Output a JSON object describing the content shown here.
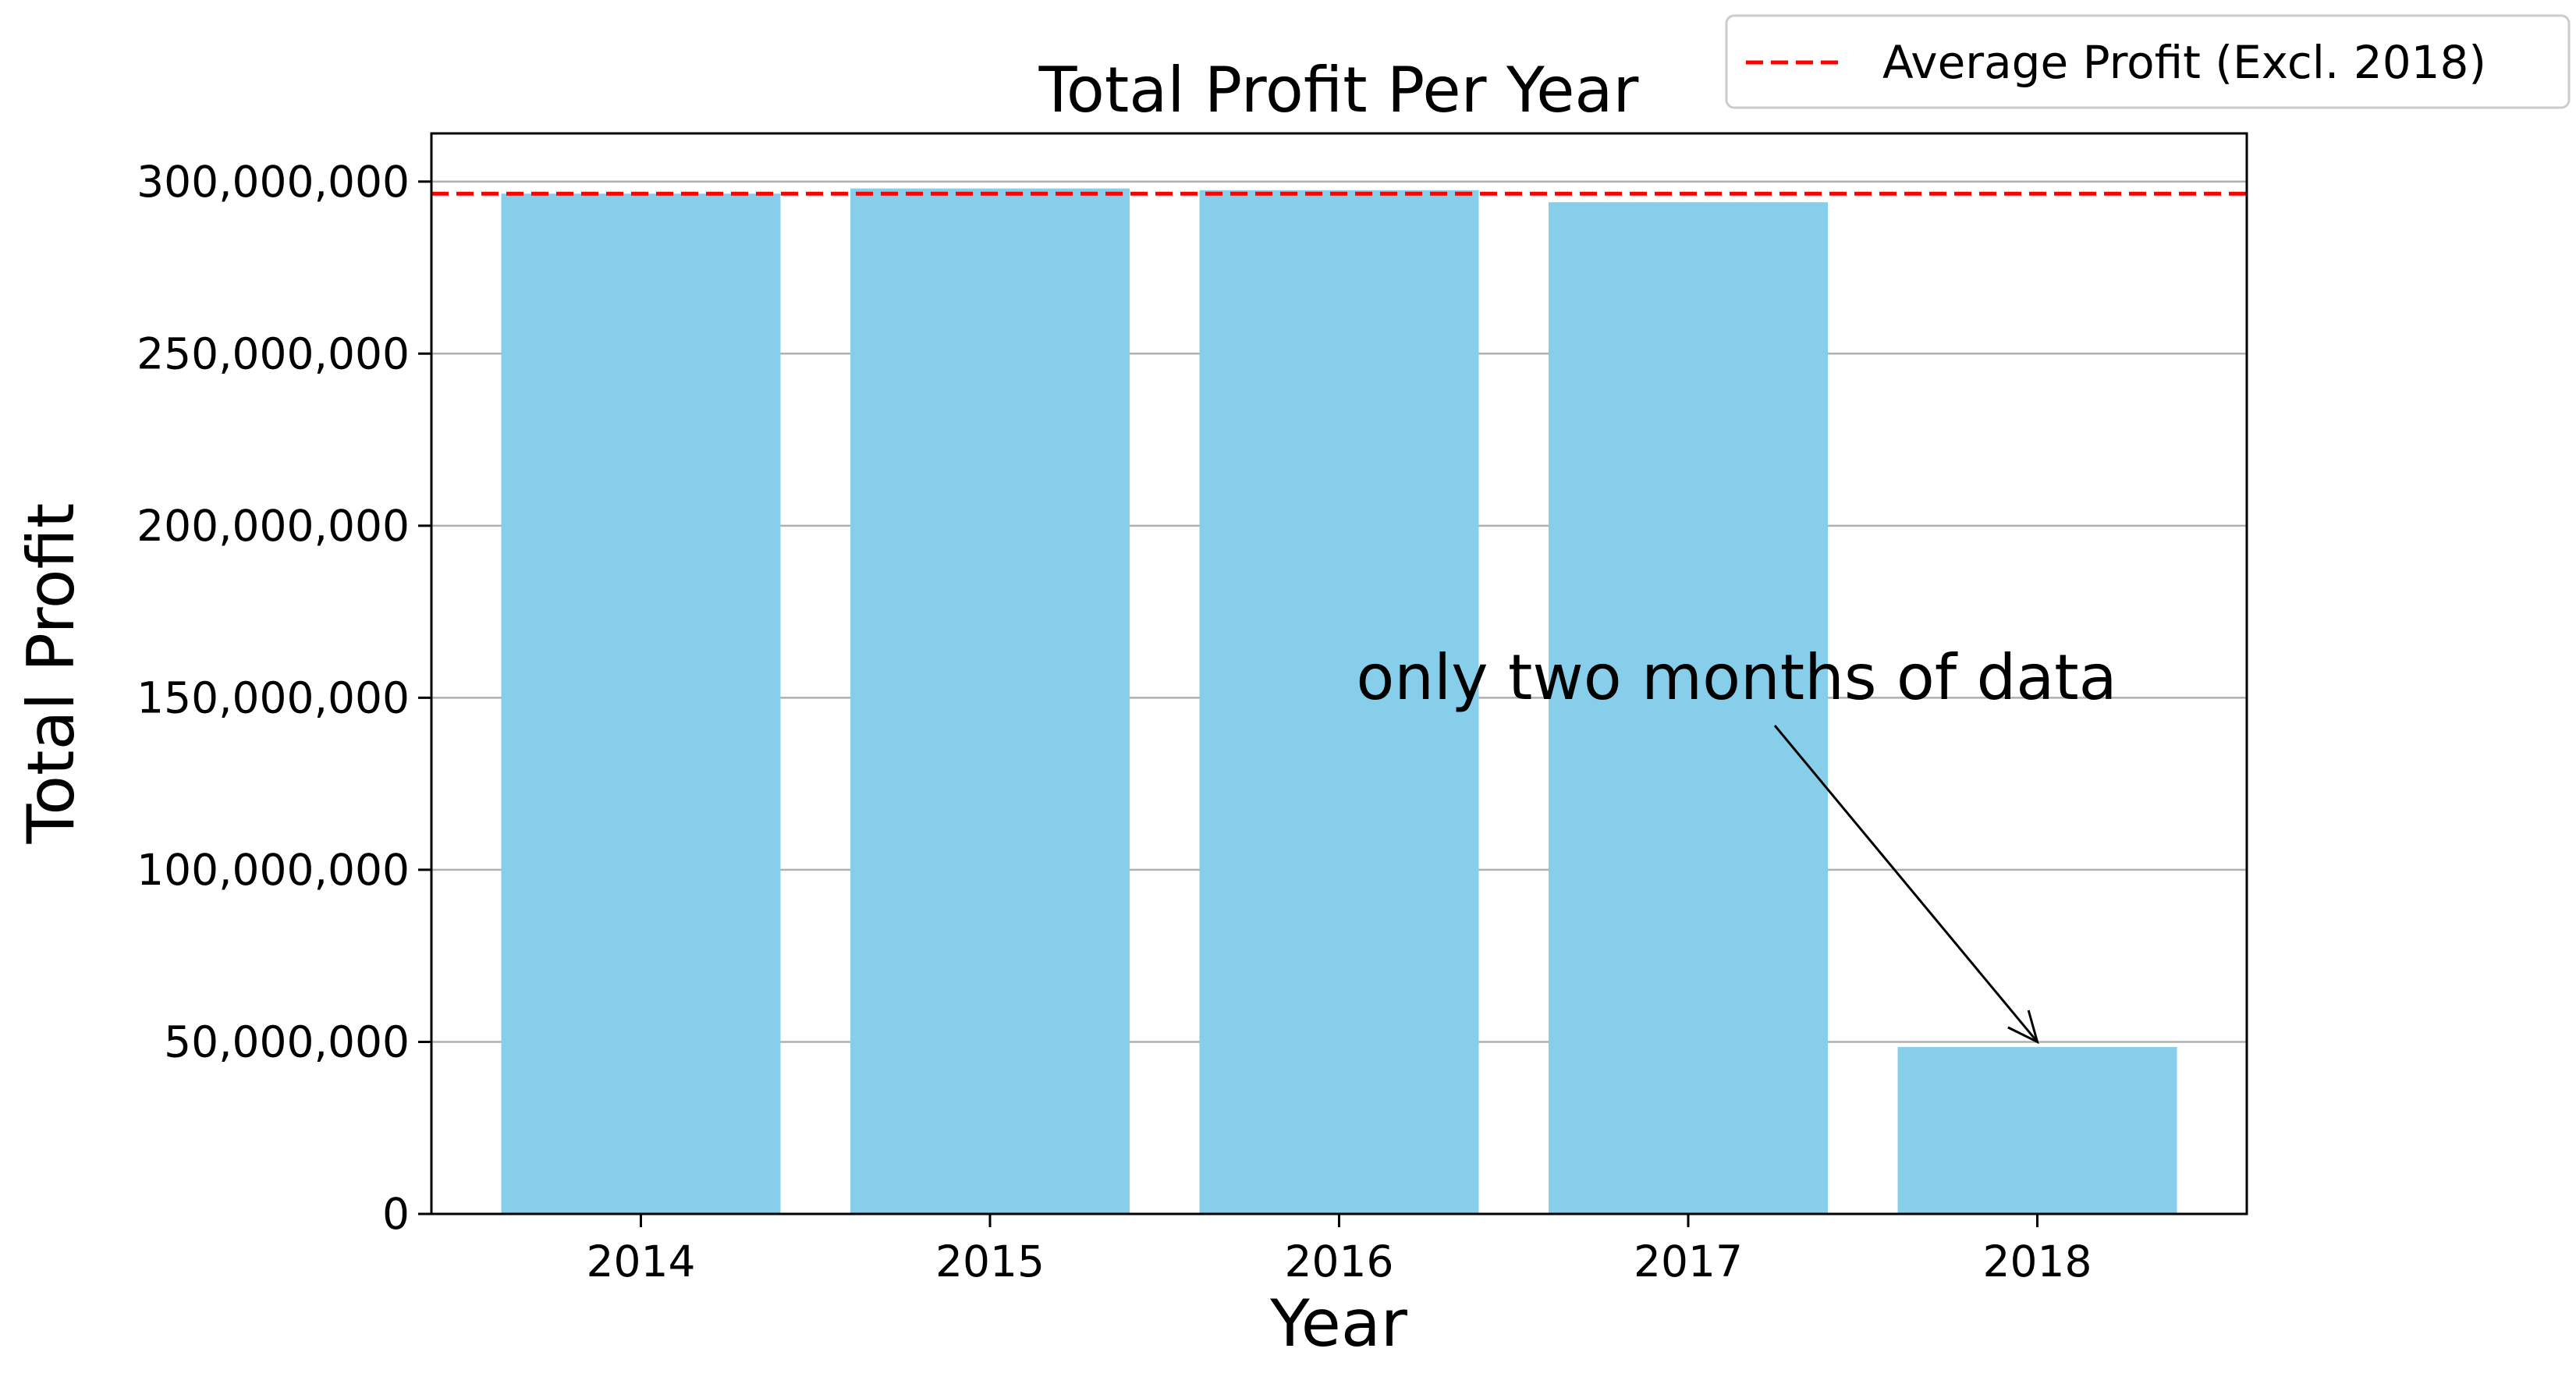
{
  "chart_data": {
    "type": "bar",
    "title": "Total Profit Per Year",
    "xlabel": "Year",
    "ylabel": "Total Profit",
    "categories": [
      "2014",
      "2015",
      "2016",
      "2017",
      "2018"
    ],
    "values": [
      296500000,
      298000000,
      297500000,
      294000000,
      48500000
    ],
    "ylim": [
      0,
      314000000
    ],
    "yticks": [
      0,
      50000000,
      100000000,
      150000000,
      200000000,
      250000000,
      300000000
    ],
    "ytick_labels": [
      "0",
      "50,000,000",
      "100,000,000",
      "150,000,000",
      "200,000,000",
      "250,000,000",
      "300,000,000"
    ],
    "grid": "y",
    "bar_color": "#87CEEB",
    "reference_line": {
      "label": "Average Profit (Excl. 2018)",
      "value": 296500000,
      "color": "#ff0000",
      "style": "dashed"
    },
    "legend": {
      "placement": "top-right, outside axes"
    },
    "annotation": {
      "text": "only two months of data",
      "target_category": "2018",
      "target_value": 50000000,
      "text_anchor_category_pos": 2.0,
      "text_anchor_value": 150000000
    }
  }
}
